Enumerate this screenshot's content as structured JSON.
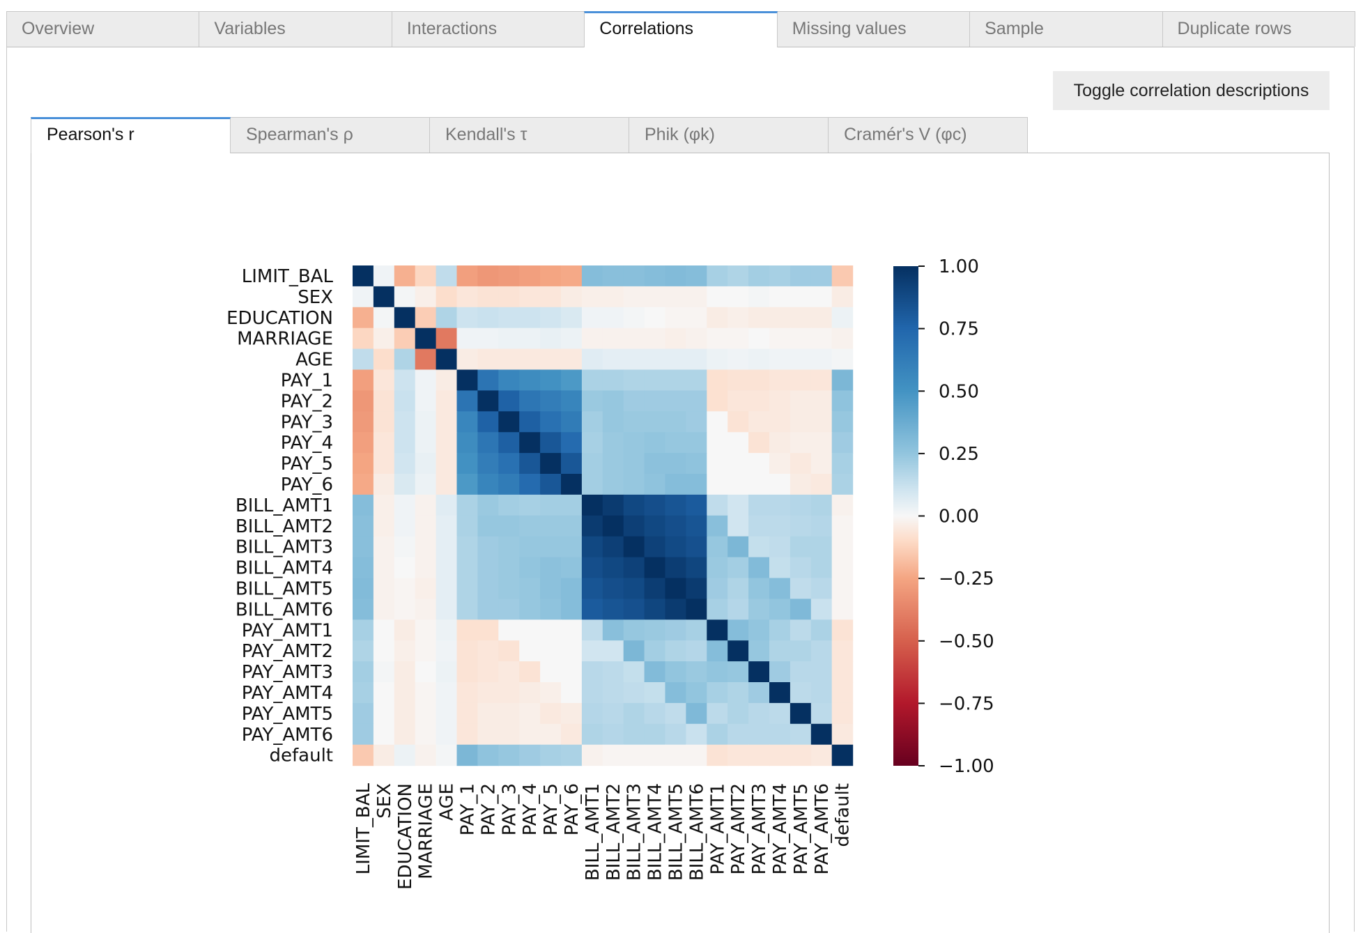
{
  "main_tabs": [
    {
      "label": "Overview",
      "active": false
    },
    {
      "label": "Variables",
      "active": false
    },
    {
      "label": "Interactions",
      "active": false
    },
    {
      "label": "Correlations",
      "active": true
    },
    {
      "label": "Missing values",
      "active": false
    },
    {
      "label": "Sample",
      "active": false
    },
    {
      "label": "Duplicate rows",
      "active": false
    }
  ],
  "toggle_button_label": "Toggle correlation descriptions",
  "sub_tabs": [
    {
      "label": "Pearson's r",
      "active": true
    },
    {
      "label": "Spearman's ρ",
      "active": false
    },
    {
      "label": "Kendall's τ",
      "active": false
    },
    {
      "label": "Phik (φk)",
      "active": false
    },
    {
      "label": "Cramér's V (φc)",
      "active": false
    }
  ],
  "chart_data": {
    "type": "heatmap",
    "title": "",
    "variables": [
      "LIMIT_BAL",
      "SEX",
      "EDUCATION",
      "MARRIAGE",
      "AGE",
      "PAY_1",
      "PAY_2",
      "PAY_3",
      "PAY_4",
      "PAY_5",
      "PAY_6",
      "BILL_AMT1",
      "BILL_AMT2",
      "BILL_AMT3",
      "BILL_AMT4",
      "BILL_AMT5",
      "BILL_AMT6",
      "PAY_AMT1",
      "PAY_AMT2",
      "PAY_AMT3",
      "PAY_AMT4",
      "PAY_AMT5",
      "PAY_AMT6",
      "default"
    ],
    "values": [
      [
        1.0,
        0.02,
        -0.22,
        -0.11,
        0.14,
        -0.27,
        -0.3,
        -0.29,
        -0.27,
        -0.25,
        -0.24,
        0.29,
        0.28,
        0.28,
        0.29,
        0.3,
        0.29,
        0.2,
        0.18,
        0.21,
        0.2,
        0.22,
        0.22,
        -0.15
      ],
      [
        0.02,
        1.0,
        0.01,
        -0.03,
        -0.09,
        -0.06,
        -0.07,
        -0.07,
        -0.06,
        -0.06,
        -0.04,
        -0.03,
        -0.03,
        -0.02,
        -0.02,
        -0.02,
        -0.02,
        0.0,
        0.0,
        0.01,
        0.0,
        0.0,
        0.0,
        -0.04
      ],
      [
        -0.22,
        0.01,
        1.0,
        -0.14,
        0.18,
        0.11,
        0.12,
        0.11,
        0.11,
        0.1,
        0.08,
        0.02,
        0.02,
        0.01,
        0.0,
        -0.01,
        -0.01,
        -0.04,
        -0.03,
        -0.04,
        -0.04,
        -0.04,
        -0.04,
        0.03
      ],
      [
        -0.11,
        -0.03,
        -0.14,
        1.0,
        -0.41,
        0.02,
        0.02,
        0.03,
        0.03,
        0.04,
        0.03,
        -0.02,
        -0.02,
        -0.02,
        -0.02,
        -0.03,
        -0.02,
        -0.01,
        -0.01,
        0.0,
        -0.01,
        -0.01,
        -0.01,
        -0.02
      ],
      [
        0.14,
        -0.09,
        0.18,
        -0.41,
        1.0,
        -0.04,
        -0.05,
        -0.05,
        -0.05,
        -0.05,
        -0.05,
        0.06,
        0.05,
        0.05,
        0.05,
        0.05,
        0.05,
        0.03,
        0.02,
        0.03,
        0.02,
        0.02,
        0.02,
        0.01
      ],
      [
        -0.27,
        -0.06,
        0.11,
        0.02,
        -0.04,
        1.0,
        0.67,
        0.57,
        0.54,
        0.51,
        0.47,
        0.19,
        0.19,
        0.18,
        0.18,
        0.18,
        0.18,
        -0.08,
        -0.07,
        -0.07,
        -0.06,
        -0.06,
        -0.06,
        0.32
      ],
      [
        -0.3,
        -0.07,
        0.12,
        0.02,
        -0.05,
        0.67,
        1.0,
        0.77,
        0.66,
        0.62,
        0.58,
        0.23,
        0.24,
        0.22,
        0.22,
        0.22,
        0.22,
        -0.08,
        -0.06,
        -0.06,
        -0.05,
        -0.04,
        -0.04,
        0.26
      ],
      [
        -0.29,
        -0.07,
        0.11,
        0.03,
        -0.05,
        0.57,
        0.77,
        1.0,
        0.78,
        0.69,
        0.63,
        0.21,
        0.24,
        0.23,
        0.23,
        0.23,
        0.22,
        0.0,
        -0.07,
        -0.05,
        -0.05,
        -0.04,
        -0.04,
        0.24
      ],
      [
        -0.27,
        -0.06,
        0.11,
        0.03,
        -0.05,
        0.54,
        0.66,
        0.78,
        1.0,
        0.82,
        0.72,
        0.2,
        0.23,
        0.24,
        0.25,
        0.24,
        0.24,
        0.0,
        0.0,
        -0.07,
        -0.04,
        -0.03,
        -0.03,
        0.22
      ],
      [
        -0.25,
        -0.06,
        0.1,
        0.04,
        -0.05,
        0.51,
        0.62,
        0.69,
        0.82,
        1.0,
        0.82,
        0.21,
        0.23,
        0.24,
        0.27,
        0.27,
        0.26,
        0.0,
        0.0,
        0.0,
        -0.03,
        -0.05,
        -0.03,
        0.2
      ],
      [
        -0.24,
        -0.04,
        0.08,
        0.03,
        -0.05,
        0.47,
        0.58,
        0.63,
        0.72,
        0.82,
        1.0,
        0.21,
        0.23,
        0.24,
        0.26,
        0.29,
        0.29,
        0.0,
        0.0,
        0.0,
        0.0,
        -0.04,
        -0.05,
        0.19
      ],
      [
        0.29,
        -0.03,
        0.02,
        -0.02,
        0.06,
        0.19,
        0.23,
        0.21,
        0.2,
        0.21,
        0.21,
        1.0,
        0.95,
        0.89,
        0.86,
        0.83,
        0.8,
        0.14,
        0.1,
        0.16,
        0.16,
        0.17,
        0.18,
        -0.02
      ],
      [
        0.28,
        -0.03,
        0.02,
        -0.02,
        0.05,
        0.19,
        0.24,
        0.24,
        0.23,
        0.23,
        0.23,
        0.95,
        1.0,
        0.93,
        0.89,
        0.86,
        0.83,
        0.28,
        0.1,
        0.15,
        0.15,
        0.16,
        0.17,
        -0.01
      ],
      [
        0.28,
        -0.02,
        0.01,
        -0.02,
        0.05,
        0.18,
        0.22,
        0.23,
        0.24,
        0.24,
        0.24,
        0.89,
        0.93,
        1.0,
        0.92,
        0.88,
        0.85,
        0.24,
        0.32,
        0.13,
        0.14,
        0.18,
        0.18,
        -0.01
      ],
      [
        0.29,
        -0.02,
        0.0,
        -0.02,
        0.05,
        0.18,
        0.22,
        0.23,
        0.25,
        0.27,
        0.26,
        0.86,
        0.89,
        0.92,
        1.0,
        0.94,
        0.9,
        0.23,
        0.21,
        0.3,
        0.13,
        0.16,
        0.18,
        -0.01
      ],
      [
        0.3,
        -0.02,
        -0.01,
        -0.03,
        0.05,
        0.18,
        0.22,
        0.23,
        0.24,
        0.27,
        0.29,
        0.83,
        0.86,
        0.88,
        0.94,
        1.0,
        0.95,
        0.22,
        0.18,
        0.25,
        0.29,
        0.14,
        0.16,
        -0.01
      ],
      [
        0.29,
        -0.02,
        -0.01,
        -0.02,
        0.05,
        0.18,
        0.22,
        0.22,
        0.24,
        0.26,
        0.29,
        0.8,
        0.83,
        0.85,
        0.9,
        0.95,
        1.0,
        0.2,
        0.17,
        0.23,
        0.25,
        0.31,
        0.12,
        -0.01
      ],
      [
        0.2,
        0.0,
        -0.04,
        -0.01,
        0.03,
        -0.08,
        -0.08,
        0.0,
        0.0,
        0.0,
        0.0,
        0.14,
        0.28,
        0.24,
        0.23,
        0.22,
        0.2,
        1.0,
        0.29,
        0.25,
        0.2,
        0.15,
        0.19,
        -0.07
      ],
      [
        0.18,
        0.0,
        -0.03,
        -0.01,
        0.02,
        -0.07,
        -0.06,
        -0.07,
        0.0,
        0.0,
        0.0,
        0.1,
        0.1,
        0.32,
        0.21,
        0.18,
        0.17,
        0.29,
        1.0,
        0.24,
        0.18,
        0.18,
        0.16,
        -0.06
      ],
      [
        0.21,
        0.01,
        -0.04,
        0.0,
        0.03,
        -0.07,
        -0.06,
        -0.05,
        -0.07,
        0.0,
        0.0,
        0.16,
        0.15,
        0.13,
        0.3,
        0.25,
        0.23,
        0.25,
        0.24,
        1.0,
        0.22,
        0.16,
        0.16,
        -0.06
      ],
      [
        0.2,
        0.0,
        -0.04,
        -0.01,
        0.02,
        -0.06,
        -0.05,
        -0.05,
        -0.04,
        -0.03,
        0.0,
        0.16,
        0.15,
        0.14,
        0.13,
        0.29,
        0.25,
        0.2,
        0.18,
        0.22,
        1.0,
        0.15,
        0.16,
        -0.06
      ],
      [
        0.22,
        0.0,
        -0.04,
        -0.01,
        0.02,
        -0.06,
        -0.04,
        -0.04,
        -0.03,
        -0.05,
        -0.04,
        0.17,
        0.16,
        0.18,
        0.16,
        0.14,
        0.31,
        0.15,
        0.18,
        0.16,
        0.15,
        1.0,
        0.15,
        -0.06
      ],
      [
        0.22,
        0.0,
        -0.04,
        -0.01,
        0.02,
        -0.06,
        -0.04,
        -0.04,
        -0.03,
        -0.03,
        -0.05,
        0.18,
        0.17,
        0.18,
        0.18,
        0.16,
        0.12,
        0.19,
        0.16,
        0.16,
        0.16,
        0.15,
        1.0,
        -0.05
      ],
      [
        -0.15,
        -0.04,
        0.03,
        -0.02,
        0.01,
        0.32,
        0.26,
        0.24,
        0.22,
        0.2,
        0.19,
        -0.02,
        -0.01,
        -0.01,
        -0.01,
        -0.01,
        -0.01,
        -0.07,
        -0.06,
        -0.06,
        -0.06,
        -0.06,
        -0.05,
        1.0
      ]
    ],
    "colorbar": {
      "colormap": "RdBu",
      "range": [
        -1,
        1
      ],
      "ticks": [
        1.0,
        0.75,
        0.5,
        0.25,
        0.0,
        -0.25,
        -0.5,
        -0.75,
        -1.0
      ],
      "tick_labels": [
        "1.00",
        "0.75",
        "0.50",
        "0.25",
        "0.00",
        "−0.25",
        "−0.50",
        "−0.75",
        "−1.00"
      ]
    },
    "colors": {
      "neg_dark": "#67001f",
      "neg_mid": "#d6604d",
      "neg_light": "#fddbc7",
      "zero": "#f7f7f7",
      "pos_light": "#d1e5f0",
      "pos_mid": "#4393c3",
      "pos_dark": "#053061"
    }
  }
}
